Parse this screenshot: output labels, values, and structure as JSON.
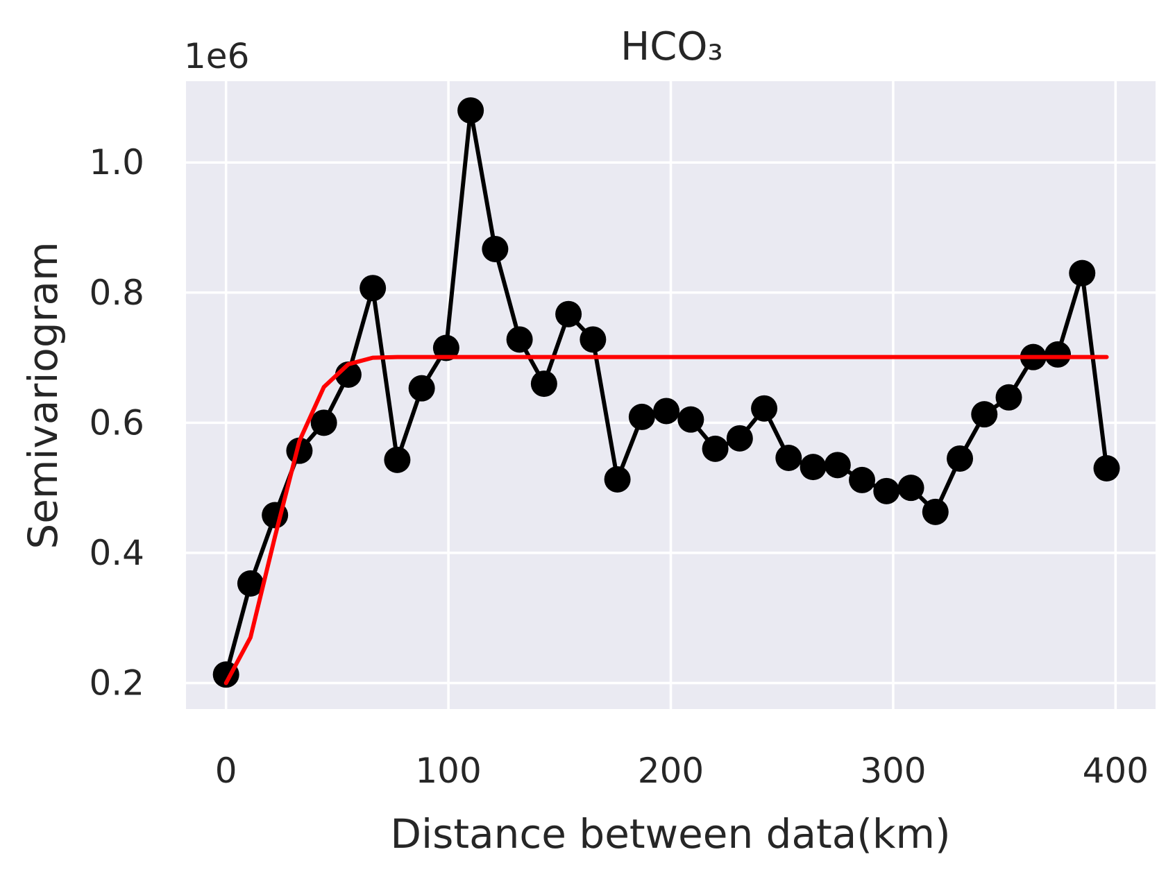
{
  "chart_data": {
    "type": "line",
    "title": "HCO₃",
    "xlabel": "Distance between data(km)",
    "ylabel": "Semivariogram",
    "y_offset_label": "1e6",
    "xlim": [
      -18,
      418
    ],
    "ylim": [
      0.16,
      1.125
    ],
    "x_ticks": [
      0,
      100,
      200,
      300,
      400
    ],
    "x_tick_labels": [
      "0",
      "100",
      "200",
      "300",
      "400"
    ],
    "y_ticks": [
      0.2,
      0.4,
      0.6,
      0.8,
      1.0
    ],
    "y_tick_labels": [
      "0.2",
      "0.4",
      "0.6",
      "0.8",
      "1.0"
    ],
    "grid": true,
    "background": "#eaeaf2",
    "series": [
      {
        "style": "line-markers",
        "color": "#000000",
        "x": [
          0,
          11,
          22,
          33,
          44,
          55,
          66,
          77,
          88,
          99,
          110,
          121,
          132,
          143,
          154,
          165,
          176,
          187,
          198,
          209,
          220,
          231,
          242,
          253,
          264,
          275,
          286,
          297,
          308,
          319,
          330,
          341,
          352,
          363,
          374,
          385,
          396
        ],
        "y": [
          0.213,
          0.353,
          0.458,
          0.557,
          0.6,
          0.674,
          0.807,
          0.543,
          0.653,
          0.715,
          1.08,
          0.867,
          0.728,
          0.66,
          0.767,
          0.728,
          0.513,
          0.609,
          0.618,
          0.605,
          0.56,
          0.576,
          0.622,
          0.546,
          0.532,
          0.535,
          0.512,
          0.495,
          0.5,
          0.463,
          0.545,
          0.613,
          0.639,
          0.701,
          0.705,
          0.83,
          0.53
        ]
      },
      {
        "style": "line",
        "color": "#ff0000",
        "x": [
          0,
          11,
          22,
          33,
          44,
          55,
          66,
          77,
          88,
          99,
          110,
          121,
          132,
          143,
          154,
          165,
          176,
          187,
          198,
          209,
          220,
          231,
          242,
          253,
          264,
          275,
          286,
          297,
          308,
          319,
          330,
          341,
          352,
          363,
          374,
          385,
          396
        ],
        "y": [
          0.2,
          0.27,
          0.425,
          0.572,
          0.655,
          0.69,
          0.7,
          0.701,
          0.701,
          0.701,
          0.701,
          0.701,
          0.701,
          0.701,
          0.701,
          0.701,
          0.701,
          0.701,
          0.701,
          0.701,
          0.701,
          0.701,
          0.701,
          0.701,
          0.701,
          0.701,
          0.701,
          0.701,
          0.701,
          0.701,
          0.701,
          0.701,
          0.701,
          0.701,
          0.701,
          0.701,
          0.701
        ]
      }
    ]
  }
}
